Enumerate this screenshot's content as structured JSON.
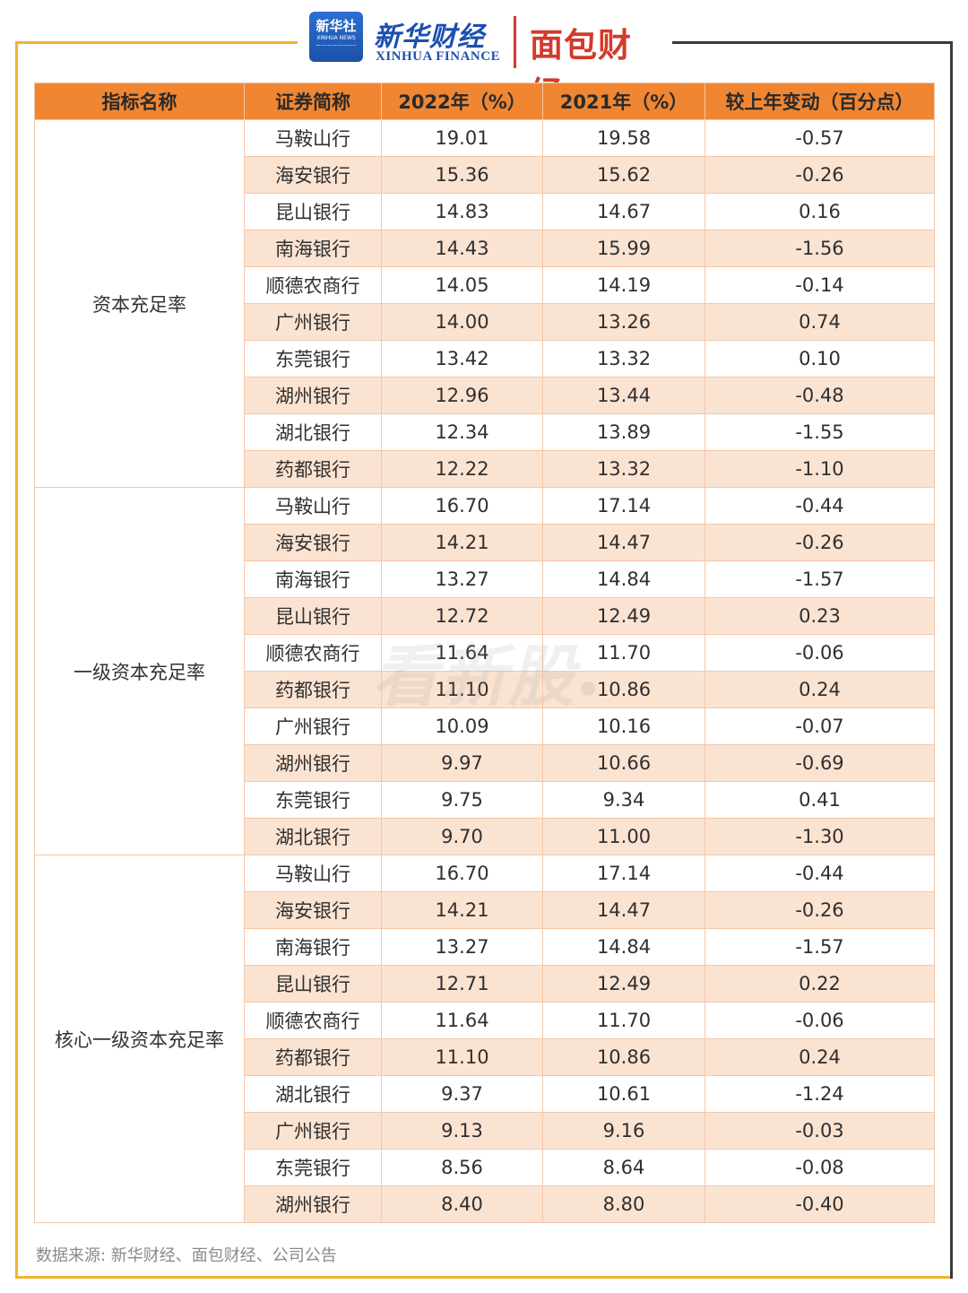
{
  "brand": {
    "xinhua_icon_text": "新华社",
    "xinhua_icon_sub": "XINHUA NEWS",
    "xinhua_cn": "新华财经",
    "xinhua_en": "XINHUA FINANCE",
    "mianbao": "面包财经"
  },
  "watermark": "看新股",
  "colors": {
    "header_bg": "#f08632",
    "alt_row_bg": "#fbe3d2",
    "border": "#f4c7a8",
    "frame_accent": "#f2b233",
    "frame_dark": "#3a3a3a"
  },
  "table": {
    "headers": [
      "指标名称",
      "证券简称",
      "2022年（%）",
      "2021年（%）",
      "较上年变动（百分点）"
    ],
    "groups": [
      {
        "name": "资本充足率",
        "rows": [
          [
            "马鞍山行",
            "19.01",
            "19.58",
            "-0.57"
          ],
          [
            "海安银行",
            "15.36",
            "15.62",
            "-0.26"
          ],
          [
            "昆山银行",
            "14.83",
            "14.67",
            "0.16"
          ],
          [
            "南海银行",
            "14.43",
            "15.99",
            "-1.56"
          ],
          [
            "顺德农商行",
            "14.05",
            "14.19",
            "-0.14"
          ],
          [
            "广州银行",
            "14.00",
            "13.26",
            "0.74"
          ],
          [
            "东莞银行",
            "13.42",
            "13.32",
            "0.10"
          ],
          [
            "湖州银行",
            "12.96",
            "13.44",
            "-0.48"
          ],
          [
            "湖北银行",
            "12.34",
            "13.89",
            "-1.55"
          ],
          [
            "药都银行",
            "12.22",
            "13.32",
            "-1.10"
          ]
        ]
      },
      {
        "name": "一级资本充足率",
        "rows": [
          [
            "马鞍山行",
            "16.70",
            "17.14",
            "-0.44"
          ],
          [
            "海安银行",
            "14.21",
            "14.47",
            "-0.26"
          ],
          [
            "南海银行",
            "13.27",
            "14.84",
            "-1.57"
          ],
          [
            "昆山银行",
            "12.72",
            "12.49",
            "0.23"
          ],
          [
            "顺德农商行",
            "11.64",
            "11.70",
            "-0.06"
          ],
          [
            "药都银行",
            "11.10",
            "10.86",
            "0.24"
          ],
          [
            "广州银行",
            "10.09",
            "10.16",
            "-0.07"
          ],
          [
            "湖州银行",
            "9.97",
            "10.66",
            "-0.69"
          ],
          [
            "东莞银行",
            "9.75",
            "9.34",
            "0.41"
          ],
          [
            "湖北银行",
            "9.70",
            "11.00",
            "-1.30"
          ]
        ]
      },
      {
        "name": "核心一级资本充足率",
        "rows": [
          [
            "马鞍山行",
            "16.70",
            "17.14",
            "-0.44"
          ],
          [
            "海安银行",
            "14.21",
            "14.47",
            "-0.26"
          ],
          [
            "南海银行",
            "13.27",
            "14.84",
            "-1.57"
          ],
          [
            "昆山银行",
            "12.71",
            "12.49",
            "0.22"
          ],
          [
            "顺德农商行",
            "11.64",
            "11.70",
            "-0.06"
          ],
          [
            "药都银行",
            "11.10",
            "10.86",
            "0.24"
          ],
          [
            "湖北银行",
            "9.37",
            "10.61",
            "-1.24"
          ],
          [
            "广州银行",
            "9.13",
            "9.16",
            "-0.03"
          ],
          [
            "东莞银行",
            "8.56",
            "8.64",
            "-0.08"
          ],
          [
            "湖州银行",
            "8.40",
            "8.80",
            "-0.40"
          ]
        ]
      }
    ]
  },
  "source": "数据来源: 新华财经、面包财经、公司公告"
}
